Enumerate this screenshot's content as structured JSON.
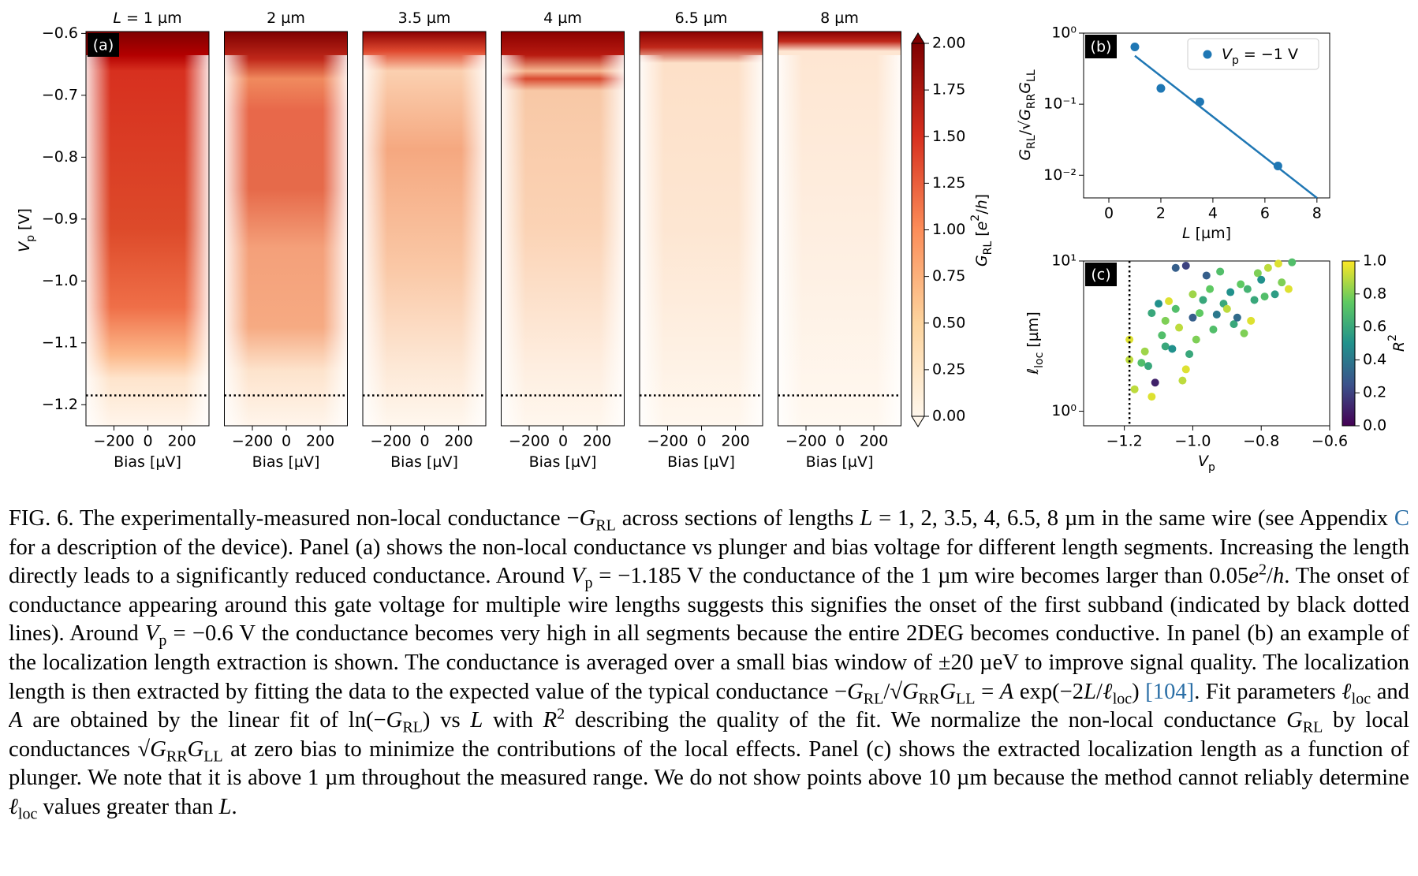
{
  "panel_a": {
    "type": "heatmap",
    "label": "(a)",
    "panels": [
      {
        "title": {
          "parts": [
            {
              "it": "L"
            },
            " = 1 µm"
          ]
        }
      },
      {
        "title": {
          "parts": [
            "2 µm"
          ]
        }
      },
      {
        "title": {
          "parts": [
            "3.5 µm"
          ]
        }
      },
      {
        "title": {
          "parts": [
            "4 µm"
          ]
        }
      },
      {
        "title": {
          "parts": [
            "6.5 µm"
          ]
        }
      },
      {
        "title": {
          "parts": [
            "8 µm"
          ]
        }
      }
    ],
    "xlim": [
      -365,
      360
    ],
    "xticks": [
      {
        "value": -200,
        "label": "−200"
      },
      0,
      200
    ],
    "ylim": [
      -1.234,
      -0.597
    ],
    "yticks": [
      {
        "value": -0.6,
        "label": "−0.6"
      },
      {
        "value": -0.7,
        "label": "−0.7"
      },
      {
        "value": -0.8,
        "label": "−0.8"
      },
      {
        "value": -0.9,
        "label": "−0.9"
      },
      {
        "value": -1.0,
        "label": "−1.0"
      },
      {
        "value": -1.1,
        "label": "−1.1"
      },
      {
        "value": -1.2,
        "label": "−1.2"
      }
    ],
    "xlabel": {
      "parts": [
        "Bias [µV]"
      ]
    },
    "ylabel": {
      "parts": [
        {
          "it": "V"
        },
        {
          "sub": "p"
        },
        " [V]"
      ]
    },
    "onset_line": -1.185,
    "colorbar": {
      "lim": [
        0,
        2
      ],
      "ticks": [
        {
          "value": 0,
          "label": "0.00"
        },
        {
          "value": 0.25,
          "label": "0.25"
        },
        {
          "value": 0.5,
          "label": "0.50"
        },
        {
          "value": 0.75,
          "label": "0.75"
        },
        {
          "value": 1,
          "label": "1.00"
        },
        {
          "value": 1.25,
          "label": "1.25"
        },
        {
          "value": 1.5,
          "label": "1.50"
        },
        {
          "value": 1.75,
          "label": "1.75"
        },
        {
          "value": 2,
          "label": "2.00"
        }
      ],
      "label": {
        "parts": [
          {
            "it": "G"
          },
          {
            "sub": "RL"
          },
          " [",
          {
            "it": "e"
          },
          {
            "sup": "2"
          },
          "/",
          {
            "it": "h"
          },
          "]"
        ]
      },
      "colormap": [
        "#fff7ec",
        "#fdd49e",
        "#fc8d59",
        "#d7301f",
        "#7f0000"
      ]
    }
  },
  "panel_b": {
    "type": "scatter",
    "label": "(b)",
    "log_y": true,
    "xlim": [
      -0.97,
      8.49
    ],
    "xticks": [
      0,
      2,
      4,
      6,
      8
    ],
    "ylim": [
      0.0048,
      1
    ],
    "yticks": [
      {
        "value": 1,
        "label": "10⁰"
      },
      {
        "value": 0.1,
        "label": "10⁻¹"
      },
      {
        "value": 0.01,
        "label": "10⁻²"
      }
    ],
    "xlabel": {
      "parts": [
        {
          "it": "L"
        },
        " [µm]"
      ]
    },
    "ylabel": {
      "parts": [
        {
          "it": "G"
        },
        {
          "sub": "RL"
        },
        "/√",
        {
          "it": "G"
        },
        {
          "sub": "RR"
        },
        {
          "it": "G"
        },
        {
          "sub": "LL"
        }
      ]
    },
    "series": [
      {
        "name": {
          "parts": [
            {
              "it": "V"
            },
            {
              "sub": "p"
            },
            " = −1 V"
          ]
        },
        "color": "#1f77b4",
        "x": [
          1,
          2,
          3.5,
          6.5
        ],
        "y": [
          0.64,
          0.167,
          0.108,
          0.0135
        ]
      }
    ],
    "fit": {
      "color": "#1f77b4",
      "x": [
        1,
        8
      ],
      "y": [
        0.48,
        0.0048
      ]
    },
    "legend": "upper right"
  },
  "panel_c": {
    "type": "scatter",
    "label": "(c)",
    "log_y": true,
    "xlim": [
      -1.319,
      -0.6
    ],
    "xticks": [
      {
        "value": -1.2,
        "label": "−1.2"
      },
      {
        "value": -1.0,
        "label": "−1.0"
      },
      {
        "value": -0.8,
        "label": "−0.8"
      },
      {
        "value": -0.6,
        "label": "−0.6"
      }
    ],
    "ylim": [
      0.8,
      10
    ],
    "yticks": [
      {
        "value": 1,
        "label": "10⁰"
      },
      {
        "value": 10,
        "label": "10¹"
      }
    ],
    "xlabel": {
      "parts": [
        {
          "it": "V"
        },
        {
          "sub": "p"
        }
      ]
    },
    "ylabel": {
      "parts": [
        {
          "it": "ℓ"
        },
        {
          "sub": "loc"
        },
        " [µm]"
      ]
    },
    "onset_line": -1.185,
    "points": {
      "x": [
        -1.185,
        -1.185,
        -1.17,
        -1.15,
        -1.14,
        -1.13,
        -1.12,
        -1.11,
        -1.12,
        -1.1,
        -1.09,
        -1.08,
        -1.08,
        -1.07,
        -1.06,
        -1.05,
        -1.04,
        -1.03,
        -1.02,
        -1.01,
        -1.0,
        -1.0,
        -0.99,
        -0.98,
        -0.97,
        -0.96,
        -0.95,
        -0.94,
        -0.93,
        -0.92,
        -0.91,
        -0.9,
        -0.89,
        -0.88,
        -0.87,
        -0.86,
        -0.85,
        -0.84,
        -0.83,
        -0.82,
        -0.81,
        -0.8,
        -0.79,
        -0.78,
        -0.76,
        -0.75,
        -0.74,
        -0.72,
        -0.71,
        -1.05,
        -1.02
      ],
      "y": [
        3.0,
        2.2,
        1.4,
        2.1,
        2.5,
        2.0,
        1.25,
        1.55,
        4.5,
        5.2,
        3.2,
        4.0,
        2.7,
        5.4,
        2.6,
        4.8,
        3.6,
        1.6,
        1.9,
        2.4,
        4.2,
        6.0,
        3.0,
        4.5,
        5.5,
        8.0,
        6.5,
        3.5,
        4.4,
        8.5,
        5.2,
        4.8,
        6.2,
        3.8,
        4.2,
        7.0,
        3.3,
        6.5,
        4.0,
        5.5,
        8.3,
        7.5,
        5.8,
        9.0,
        6.0,
        9.6,
        7.2,
        6.5,
        9.8,
        9.0,
        9.3
      ],
      "r2": [
        0.95,
        0.9,
        0.9,
        0.7,
        0.85,
        0.6,
        0.95,
        0.1,
        0.6,
        0.5,
        0.7,
        0.8,
        0.6,
        0.95,
        0.5,
        0.7,
        0.9,
        0.9,
        0.95,
        0.6,
        0.3,
        0.85,
        0.8,
        0.75,
        0.6,
        0.3,
        0.75,
        0.7,
        0.4,
        0.7,
        0.6,
        0.9,
        0.5,
        0.6,
        0.35,
        0.75,
        0.8,
        0.65,
        0.95,
        0.6,
        0.8,
        0.5,
        0.7,
        0.9,
        0.55,
        0.95,
        0.8,
        0.95,
        0.7,
        0.3,
        0.2
      ]
    },
    "colorbar": {
      "lim": [
        0,
        1
      ],
      "ticks": [
        {
          "value": 0,
          "label": "0.0"
        },
        {
          "value": 0.2,
          "label": "0.2"
        },
        {
          "value": 0.4,
          "label": "0.4"
        },
        {
          "value": 0.6,
          "label": "0.6"
        },
        {
          "value": 0.8,
          "label": "0.8"
        },
        {
          "value": 1,
          "label": "1.0"
        }
      ],
      "label": {
        "parts": [
          {
            "it": "R"
          },
          {
            "sup": "2"
          }
        ]
      },
      "colormap": [
        "#440154",
        "#3b528b",
        "#21918c",
        "#5ec962",
        "#fde725"
      ]
    }
  },
  "caption": {
    "parts": [
      "FIG. 6.   The experimentally-measured non-local conductance −",
      {
        "it": "G"
      },
      {
        "sub": "RL"
      },
      " across sections of lengths ",
      {
        "it": "L"
      },
      " = 1, 2, 3.5, 4, 6.5, 8 µm in the same wire (see Appendix ",
      {
        "link": "C"
      },
      " for a description of the device). Panel (a) shows the non-local conductance vs plunger and bias voltage for different length segments. Increasing the length directly leads to a significantly reduced conductance. Around ",
      {
        "it": "V"
      },
      {
        "sub": "p"
      },
      " = −1.185 V the conductance of the 1 µm wire becomes larger than 0.05",
      {
        "it": "e"
      },
      {
        "sup": "2"
      },
      "/",
      {
        "it": "h"
      },
      ". The onset of conductance appearing around this gate voltage for multiple wire lengths suggests this signifies the onset of the first subband (indicated by black dotted lines). Around ",
      {
        "it": "V"
      },
      {
        "sub": "p"
      },
      " = −0.6 V the conductance becomes very high in all segments because the entire 2DEG becomes conductive. In panel (b) an example of the localization length extraction is shown. The conductance is averaged over a small bias window of ±20 µeV to improve signal quality. The localization length is then extracted by fitting the data to the expected value of the typical conductance −",
      {
        "it": "G"
      },
      {
        "sub": "RL"
      },
      "/√",
      {
        "it": "G"
      },
      {
        "sub": "RR"
      },
      {
        "it": "G"
      },
      {
        "sub": "LL"
      },
      " = ",
      {
        "it": "A"
      },
      " exp(−2",
      {
        "it": "L"
      },
      "/",
      {
        "it": "ℓ"
      },
      {
        "sub": "loc"
      },
      ") ",
      {
        "link": "[104]"
      },
      ". Fit parameters ",
      {
        "it": "ℓ"
      },
      {
        "sub": "loc"
      },
      " and ",
      {
        "it": "A"
      },
      " are obtained by the linear fit of ln(−",
      {
        "it": "G"
      },
      {
        "sub": "RL"
      },
      ") vs ",
      {
        "it": "L"
      },
      " with ",
      {
        "it": "R"
      },
      {
        "sup": "2"
      },
      " describing the quality of the fit. We normalize the non-local conductance ",
      {
        "it": "G"
      },
      {
        "sub": "RL"
      },
      " by local conductances √",
      {
        "it": "G"
      },
      {
        "sub": "RR"
      },
      {
        "it": "G"
      },
      {
        "sub": "LL"
      },
      " at zero bias to minimize the contributions of the local effects. Panel (c) shows the extracted localization length as a function of plunger. We note that it is above 1 µm throughout the measured range. We do not show points above 10 µm because the method cannot reliably determine ",
      {
        "it": "ℓ"
      },
      {
        "sub": "loc"
      },
      " values greater than ",
      {
        "it": "L"
      },
      "."
    ]
  }
}
